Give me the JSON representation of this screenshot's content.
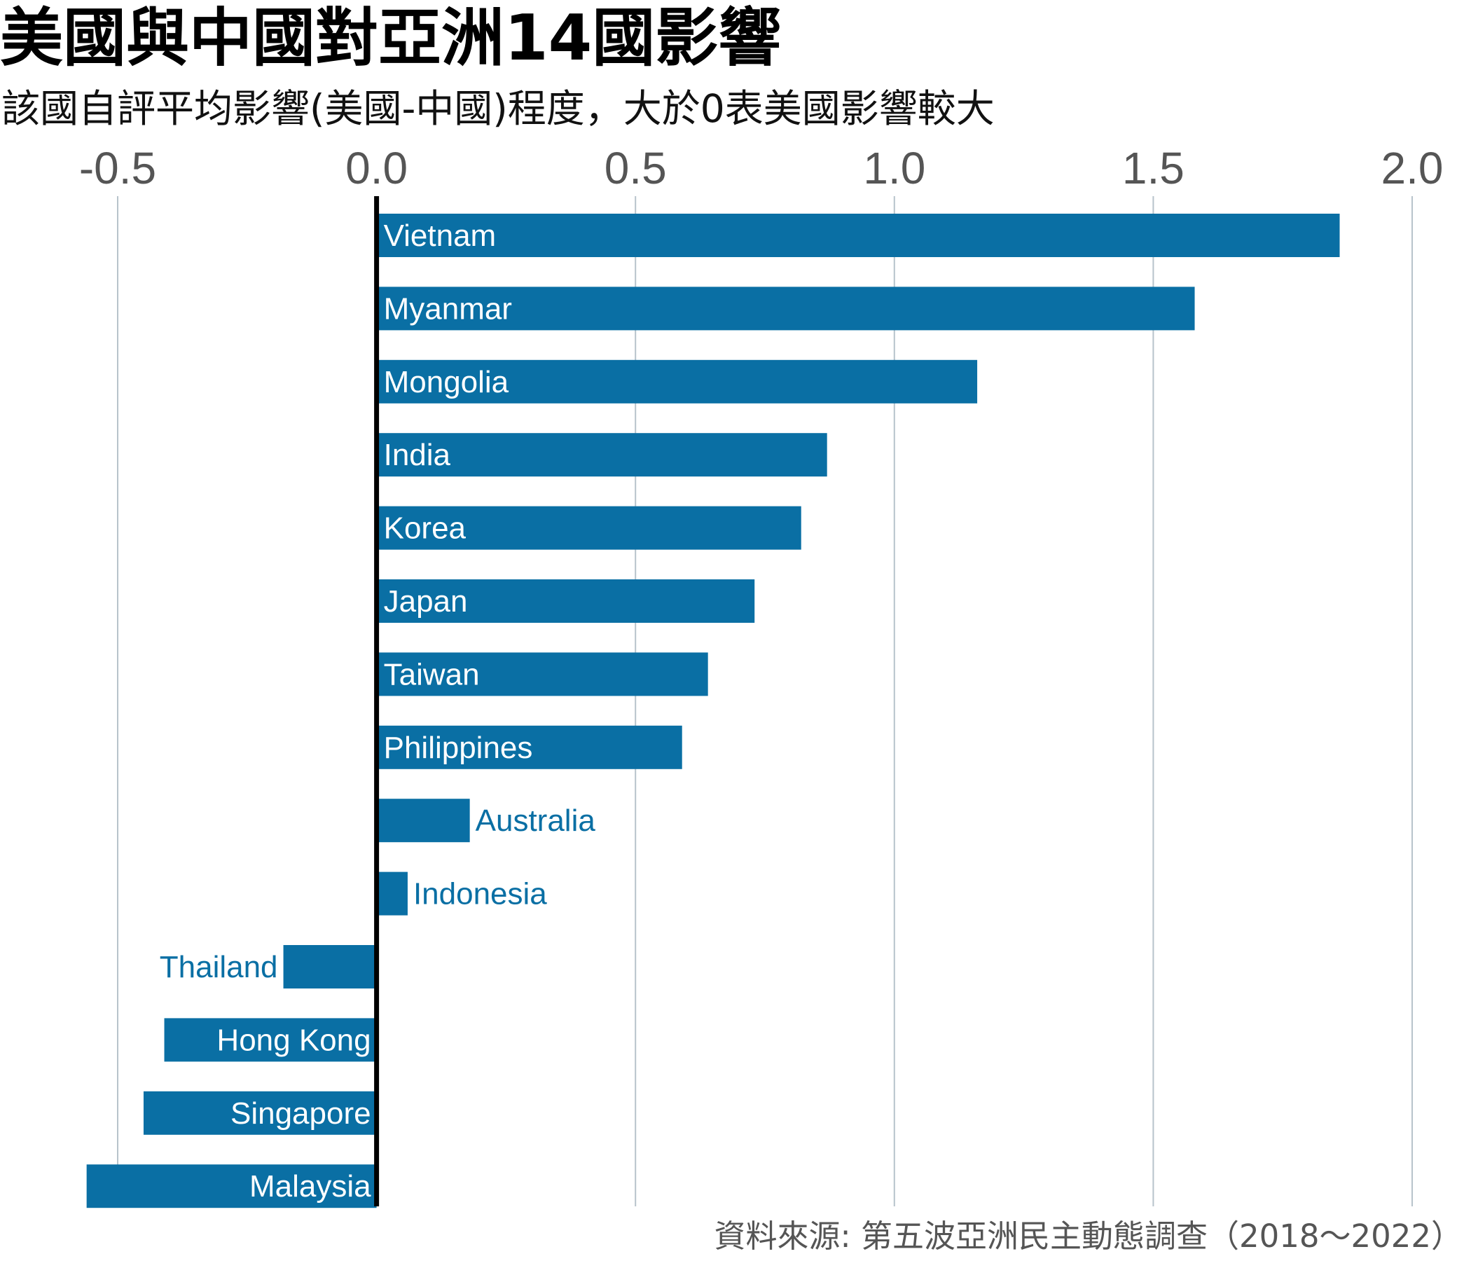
{
  "title": "美國與中國對亞洲14國影響",
  "subtitle": "該國自評平均影響(美國-中國)程度，大於0表美國影響較大",
  "source": "資料來源: 第五波亞洲民主動態調查（2018～2022）",
  "colors": {
    "bar": "#0a6fa4",
    "grid": "#b7c3cb",
    "zero_line": "#000000",
    "tick_text": "#555555"
  },
  "chart_data": {
    "type": "bar",
    "orientation": "horizontal",
    "title": "美國與中國對亞洲14國影響",
    "subtitle": "該國自評平均影響(美國-中國)程度，大於0表美國影響較大",
    "xlim": [
      -0.5,
      2.0
    ],
    "x_ticks": [
      "-0.5",
      "0.0",
      "0.5",
      "1.0",
      "1.5",
      "2.0"
    ],
    "x_tick_values": [
      -0.5,
      0.0,
      0.5,
      1.0,
      1.5,
      2.0
    ],
    "grid": true,
    "categories": [
      "Vietnam",
      "Myanmar",
      "Mongolia",
      "India",
      "Korea",
      "Japan",
      "Taiwan",
      "Philippines",
      "Australia",
      "Indonesia",
      "Thailand",
      "Hong Kong",
      "Singapore",
      "Malaysia"
    ],
    "values": [
      1.86,
      1.58,
      1.16,
      0.87,
      0.82,
      0.73,
      0.64,
      0.59,
      0.18,
      0.06,
      -0.18,
      -0.41,
      -0.45,
      -0.56
    ]
  }
}
